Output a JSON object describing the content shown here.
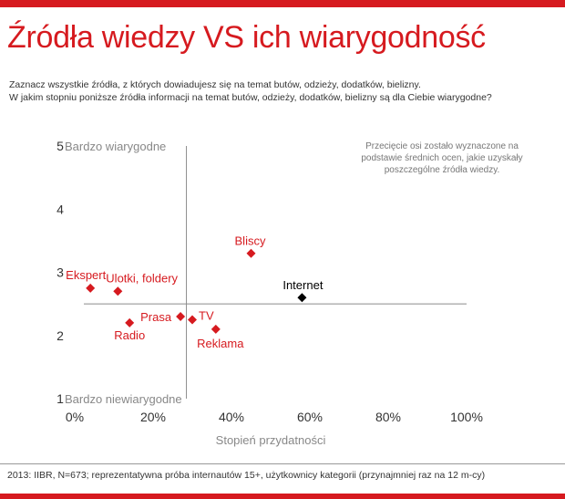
{
  "header": {
    "title": "Źródła wiedzy VS ich wiarygodność",
    "subtitle_line1": "Zaznacz wszystkie źródła, z których dowiadujesz się na temat butów, odzieży, dodatków, bielizny.",
    "subtitle_line2": "W jakim stopniu poniższe źródła informacji na temat butów, odzieży, dodatków, bielizny są dla Ciebie wiarygodne?"
  },
  "note": "Przecięcie osi zostało wyznaczone na podstawie średnich ocen, jakie uzyskały poszczególne źródła wiedzy.",
  "footer": {
    "source": "2013: IIBR, N=673; reprezentatywna próba internautów 15+, użytkownicy kategorii (przynajmniej raz na 12 m-cy)"
  },
  "colors": {
    "accent": "#d61a1f",
    "highlight": "#000000",
    "axis": "#8c8c8c"
  },
  "chart_data": {
    "type": "scatter",
    "title": "Źródła wiedzy VS ich wiarygodność",
    "xlabel": "Stopień przydatności",
    "ylabel": "",
    "xlim": [
      0,
      100
    ],
    "ylim": [
      1,
      5
    ],
    "x_ticks": [
      "0%",
      "20%",
      "40%",
      "60%",
      "80%",
      "100%"
    ],
    "y_ticks": [
      "1",
      "2",
      "3",
      "4",
      "5"
    ],
    "y_top_label": "Bardzo wiarygodne",
    "y_bottom_label": "Bardzo niewiarygodne",
    "axis_cross": {
      "x": 28.5,
      "y": 2.5
    },
    "points": [
      {
        "name": "Bliscy",
        "x": 45,
        "y": 3.3,
        "highlight": false
      },
      {
        "name": "Internet",
        "x": 58,
        "y": 2.6,
        "highlight": true
      },
      {
        "name": "Ekspert",
        "x": 4,
        "y": 2.75,
        "highlight": false
      },
      {
        "name": "Ulotki, foldery",
        "x": 11,
        "y": 2.7,
        "highlight": false
      },
      {
        "name": "Prasa",
        "x": 27,
        "y": 2.3,
        "highlight": false
      },
      {
        "name": "TV",
        "x": 30,
        "y": 2.25,
        "highlight": false
      },
      {
        "name": "Radio",
        "x": 14,
        "y": 2.2,
        "highlight": false
      },
      {
        "name": "Reklama",
        "x": 36,
        "y": 2.1,
        "highlight": false
      }
    ]
  }
}
